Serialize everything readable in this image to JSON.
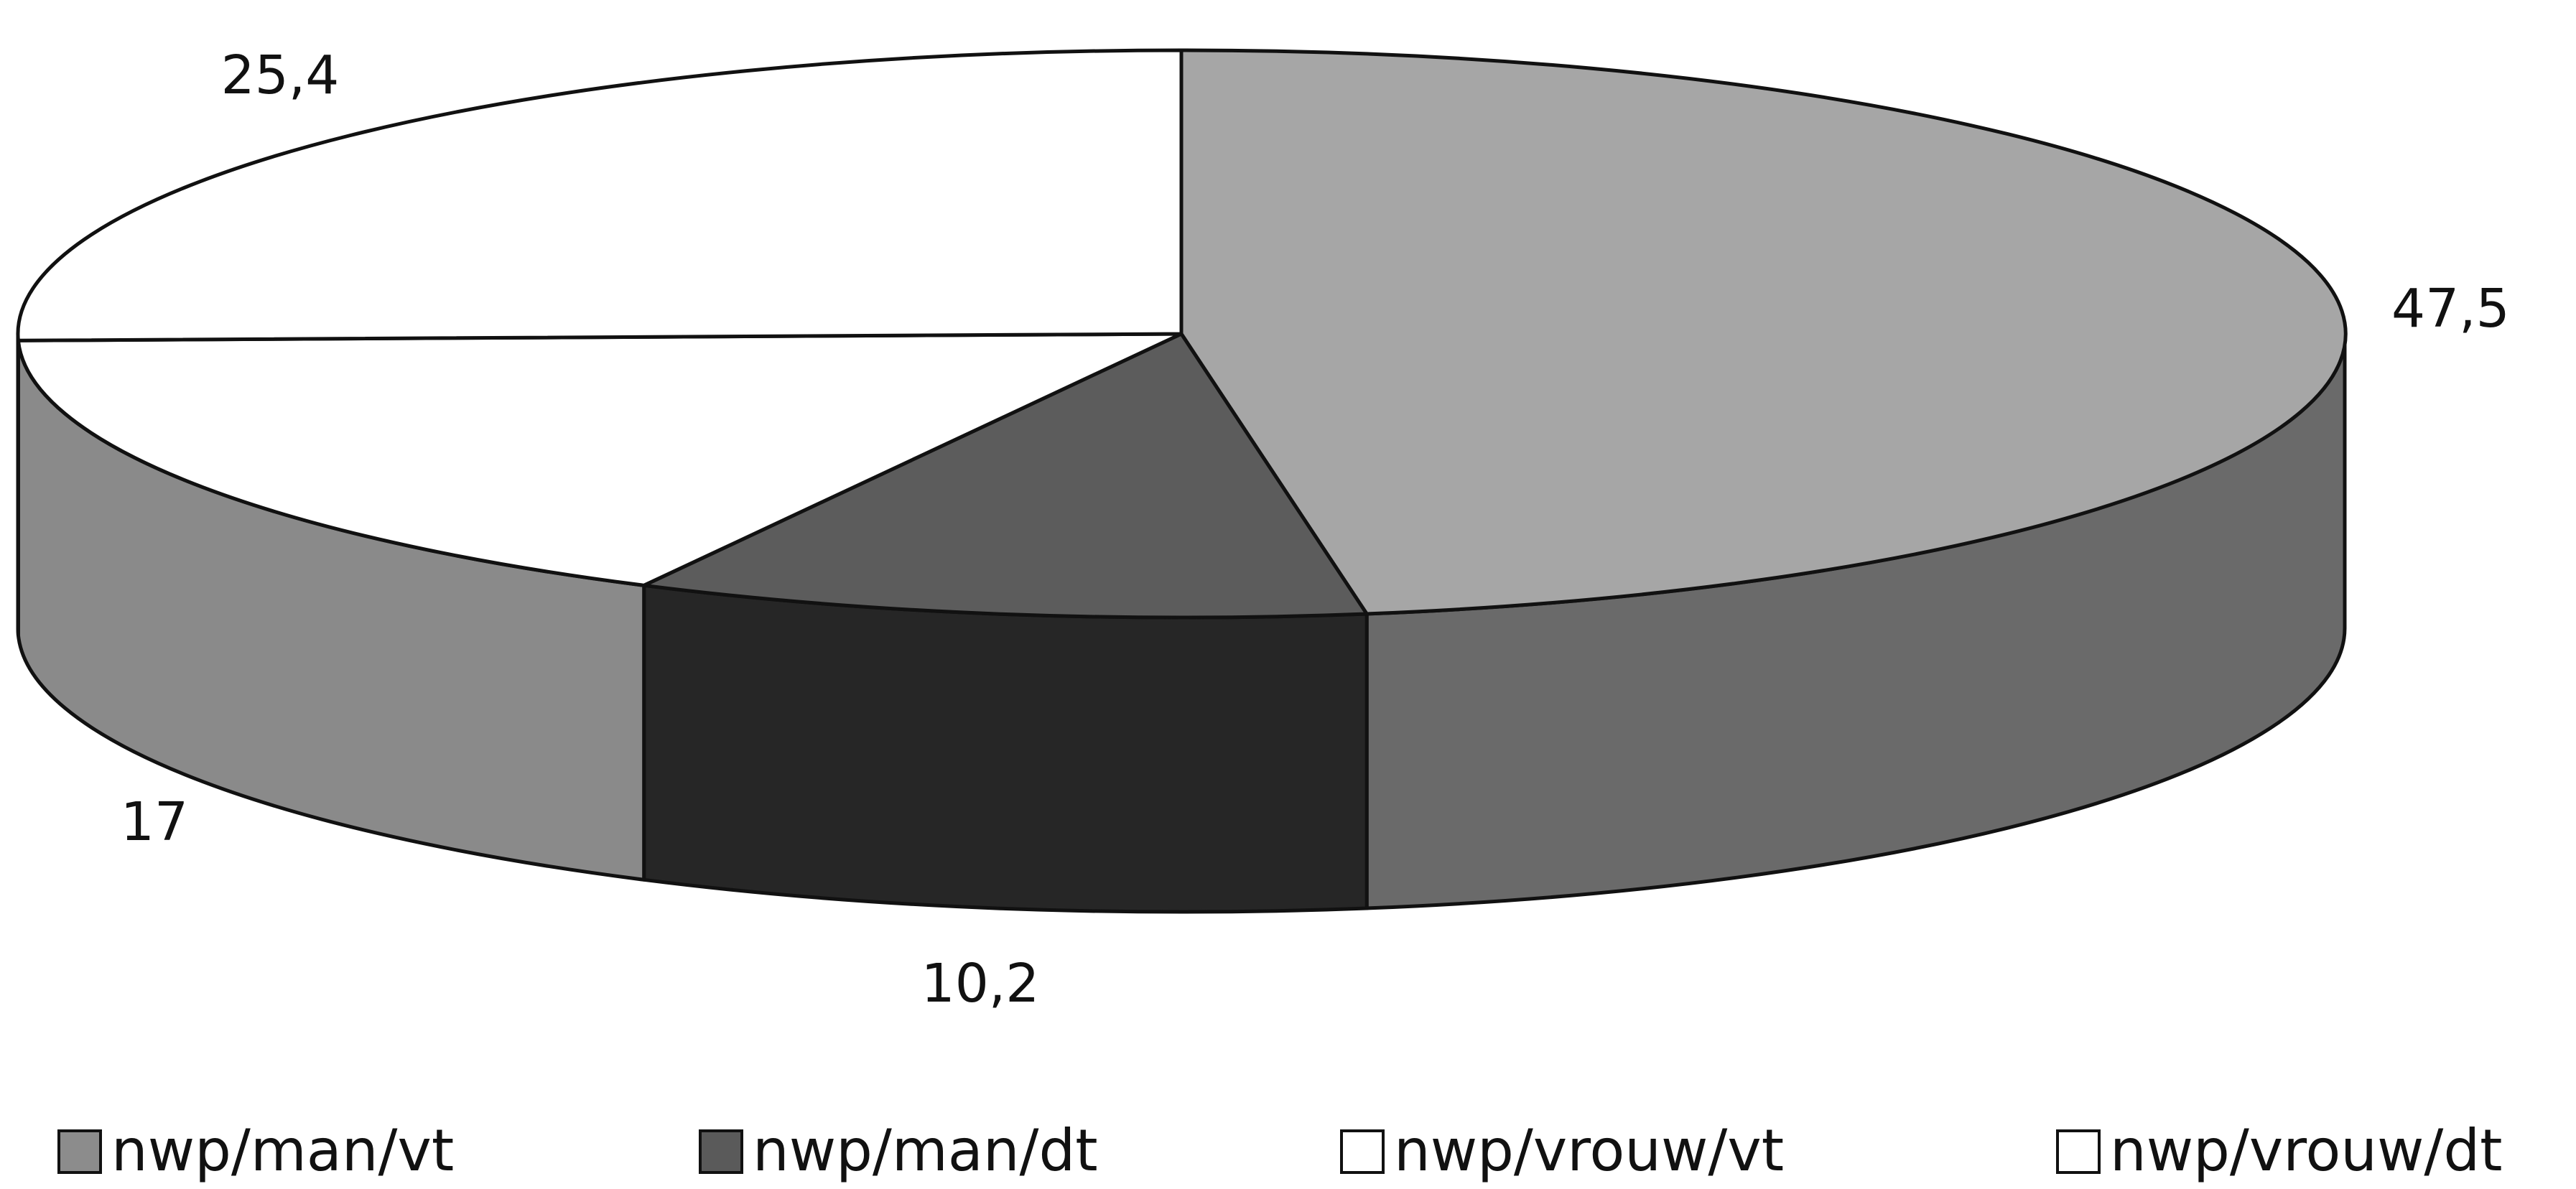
{
  "chart_data": {
    "type": "pie",
    "subtype": "3d-exploded",
    "title": "",
    "slices": [
      {
        "label": "nwp/man/vt",
        "value": 47.5,
        "value_label": "47,5",
        "color": "#a6a6a6",
        "side_color": "#6a6a6a"
      },
      {
        "label": "nwp/man/dt",
        "value": 10.2,
        "value_label": "10,2",
        "color": "#5c5c5c",
        "side_color": "#262626"
      },
      {
        "label": "nwp/vrouw/vt",
        "value": 17,
        "value_label": "17",
        "color": "#ffffff",
        "side_color": "#8a8a8a"
      },
      {
        "label": "nwp/vrouw/dt",
        "value": 25.4,
        "value_label": "25,4",
        "color": "#ffffff",
        "side_color": "#8a8a8a"
      }
    ],
    "legend": {
      "position": "bottom",
      "entries": [
        {
          "label": "nwp/man/vt",
          "swatch_color": "#8c8c8c"
        },
        {
          "label": "nwp/man/dt",
          "swatch_color": "#5a5a5a"
        },
        {
          "label": "nwp/vrouw/vt",
          "swatch_color": "#ffffff"
        },
        {
          "label": "nwp/vrouw/dt",
          "swatch_color": "#ffffff"
        }
      ]
    }
  }
}
